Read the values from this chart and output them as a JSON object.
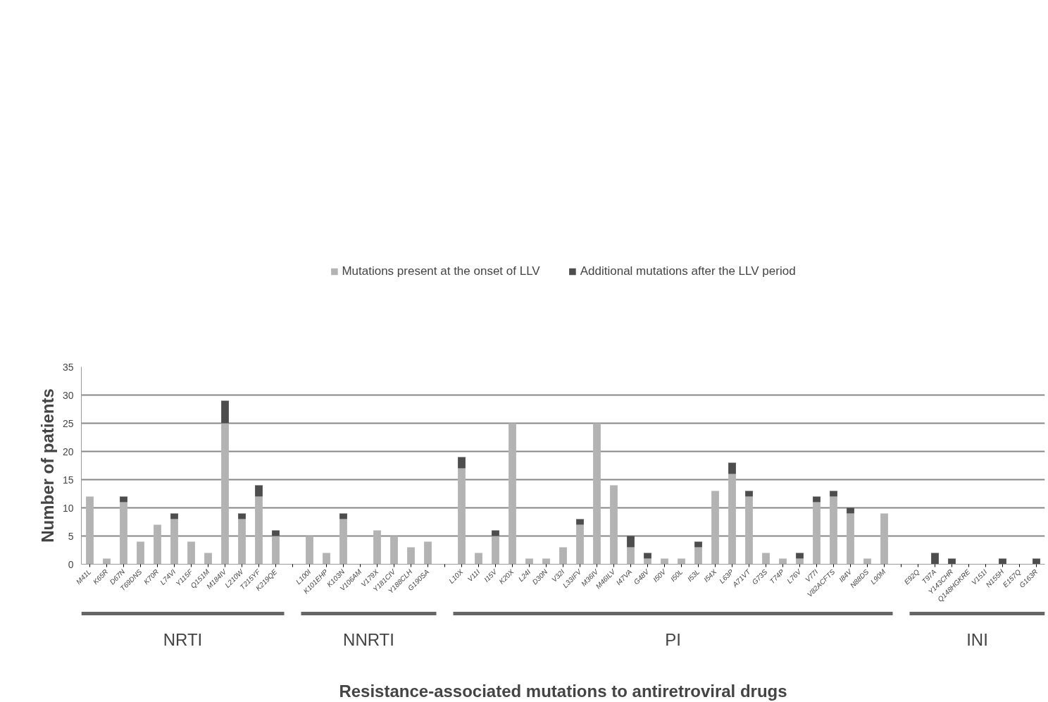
{
  "chart_data": {
    "type": "bar",
    "stacked": true,
    "xlabel": "Resistance-associated mutations to antiretroviral drugs",
    "ylabel": "Number of patients",
    "categories": [
      "M41L",
      "K65R",
      "D67N",
      "T69DNS",
      "K70R",
      "L74VI",
      "Y115F",
      "Q151M",
      "M184IV",
      "L210W",
      "T215YF",
      "K219QE",
      null,
      "L100I",
      "K101EHP",
      "K103N",
      "V106AM",
      "V179X",
      "Y181CIV",
      "Y188CLH",
      "G190SA",
      null,
      "L10X",
      "V11I",
      "I15V",
      "K20X",
      "L24I",
      "D30N",
      "V32I",
      "L33IFV",
      "M36IV",
      "M46ILV",
      "I47VA",
      "G48V",
      "I50V",
      "I50L",
      "I53L",
      "I54X",
      "L63P",
      "A71VT",
      "G73S",
      "T74P",
      "L76V",
      "V77I",
      "V82ACFTS",
      "I84V",
      "N88DS",
      "L90M",
      null,
      "E92Q",
      "T97A",
      "Y143CHR",
      "Q148HGKRE",
      "V151I",
      "N155H",
      "E157Q",
      "G163R"
    ],
    "series": [
      {
        "name": "Mutations present at the onset of LLV",
        "color": "#b3b3b3",
        "values": [
          12,
          1,
          11,
          4,
          7,
          8,
          4,
          2,
          25,
          8,
          12,
          5,
          0,
          5,
          2,
          8,
          0,
          6,
          5,
          3,
          4,
          0,
          17,
          2,
          5,
          25,
          1,
          1,
          3,
          7,
          25,
          14,
          3,
          1,
          1,
          1,
          3,
          13,
          16,
          12,
          2,
          1,
          1,
          11,
          12,
          9,
          1,
          9,
          0,
          0,
          0,
          0,
          0,
          0,
          0,
          0,
          0
        ]
      },
      {
        "name": "Additional mutations after the LLV period",
        "color": "#4d4d4d",
        "values": [
          0,
          0,
          1,
          0,
          0,
          1,
          0,
          0,
          4,
          1,
          2,
          1,
          0,
          0,
          0,
          1,
          0,
          0,
          0,
          0,
          0,
          0,
          2,
          0,
          1,
          0,
          0,
          0,
          0,
          1,
          0,
          0,
          2,
          1,
          0,
          0,
          1,
          0,
          2,
          1,
          0,
          0,
          1,
          1,
          1,
          1,
          0,
          0,
          0,
          0,
          2,
          1,
          0,
          0,
          1,
          0,
          1
        ]
      }
    ],
    "ylim": [
      0,
      35
    ],
    "yticks": [
      0,
      5,
      10,
      15,
      20,
      25,
      30,
      35
    ],
    "grid": "y",
    "legend": "top",
    "annotations": [
      "NRTI",
      "NNRTI",
      "PI",
      "INI"
    ]
  }
}
